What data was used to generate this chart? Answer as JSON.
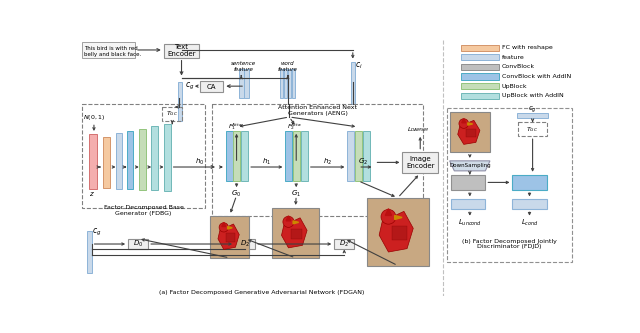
{
  "title_a": "(a) Factor Decomposed Generative Adversarial Network (FDGAN)",
  "title_b": "(b) Factor Decomposed Jointly\nDiscriminator (FDJD)",
  "legend_colors": [
    [
      "#F5C9A0",
      "#D4956A"
    ],
    [
      "#C9D9EA",
      "#8EB4D8"
    ],
    [
      "#BFBFBF",
      "#909090"
    ],
    [
      "#9DC3E6",
      "#4BACC6"
    ],
    [
      "#C5DDB8",
      "#93C47D"
    ],
    [
      "#B2DFDF",
      "#70B8B8"
    ]
  ],
  "legend_labels": [
    "FC with reshape",
    "feature",
    "ConvBlock",
    "ConvBlock with AddIN",
    "UpBlock",
    "UpBlock with AddIN"
  ],
  "bg_color": "#FFFFFF"
}
